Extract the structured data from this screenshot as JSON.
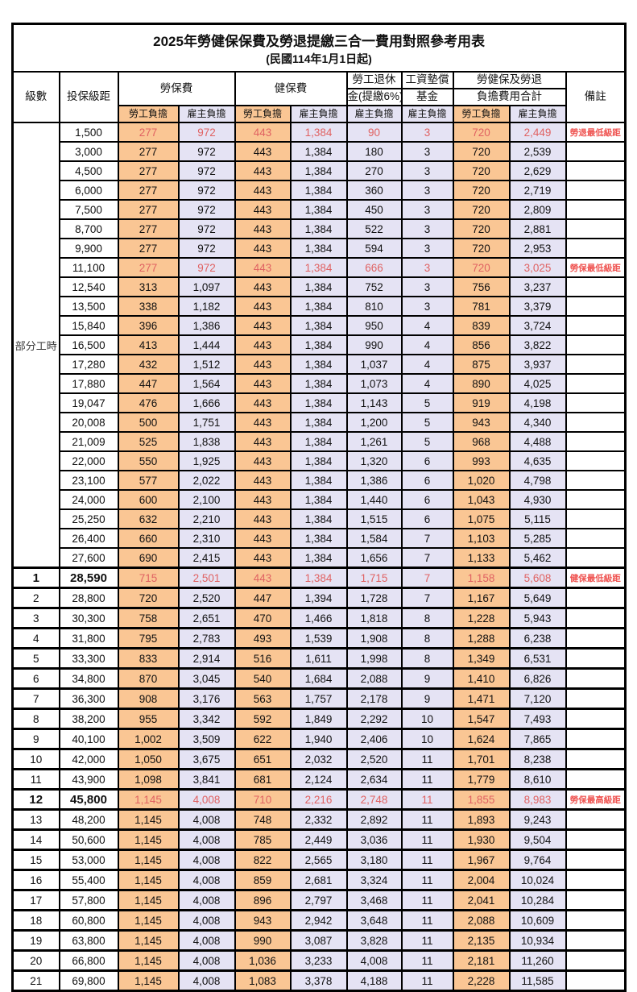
{
  "page": {
    "title": "2025年勞健保保費及勞退提繳三合一費用對照參考用表",
    "subtitle": "(民國114年1月1日起)"
  },
  "columns": {
    "level": "級數",
    "bracket": "投保級距",
    "labor_fee": "勞保費",
    "health_fee": "健保費",
    "pension_l1": "勞工退休",
    "pension_l2": "金(提繳6%)",
    "wage_fund_l1": "工資墊償",
    "wage_fund_l2": "基金",
    "total_l1": "勞健保及勞退",
    "total_l2": "負擔費用合計",
    "remark": "備註",
    "employee_share": "勞工負擔",
    "employer_share": "雇主負擔"
  },
  "group_label": "部分工時",
  "colors": {
    "employee_fill": "#FAC694",
    "employer_fill": "#E5E3F4",
    "highlight_number_text": "#E06262",
    "remark_text": "#EF5350",
    "border": "#000000"
  },
  "rows": [
    {
      "level": "",
      "bracket": "1,500",
      "cells": [
        "277",
        "972",
        "443",
        "1,384",
        "90",
        "3",
        "720",
        "2,449"
      ],
      "remark": "勞退最低級距",
      "red": true,
      "bold": false
    },
    {
      "level": "",
      "bracket": "3,000",
      "cells": [
        "277",
        "972",
        "443",
        "1,384",
        "180",
        "3",
        "720",
        "2,539"
      ],
      "remark": "",
      "red": false,
      "bold": false
    },
    {
      "level": "",
      "bracket": "4,500",
      "cells": [
        "277",
        "972",
        "443",
        "1,384",
        "270",
        "3",
        "720",
        "2,629"
      ],
      "remark": "",
      "red": false,
      "bold": false
    },
    {
      "level": "",
      "bracket": "6,000",
      "cells": [
        "277",
        "972",
        "443",
        "1,384",
        "360",
        "3",
        "720",
        "2,719"
      ],
      "remark": "",
      "red": false,
      "bold": false
    },
    {
      "level": "",
      "bracket": "7,500",
      "cells": [
        "277",
        "972",
        "443",
        "1,384",
        "450",
        "3",
        "720",
        "2,809"
      ],
      "remark": "",
      "red": false,
      "bold": false
    },
    {
      "level": "",
      "bracket": "8,700",
      "cells": [
        "277",
        "972",
        "443",
        "1,384",
        "522",
        "3",
        "720",
        "2,881"
      ],
      "remark": "",
      "red": false,
      "bold": false
    },
    {
      "level": "",
      "bracket": "9,900",
      "cells": [
        "277",
        "972",
        "443",
        "1,384",
        "594",
        "3",
        "720",
        "2,953"
      ],
      "remark": "",
      "red": false,
      "bold": false
    },
    {
      "level": "",
      "bracket": "11,100",
      "cells": [
        "277",
        "972",
        "443",
        "1,384",
        "666",
        "3",
        "720",
        "3,025"
      ],
      "remark": "勞保最低級距",
      "red": true,
      "bold": false
    },
    {
      "level": "",
      "bracket": "12,540",
      "cells": [
        "313",
        "1,097",
        "443",
        "1,384",
        "752",
        "3",
        "756",
        "3,237"
      ],
      "remark": "",
      "red": false,
      "bold": false
    },
    {
      "level": "",
      "bracket": "13,500",
      "cells": [
        "338",
        "1,182",
        "443",
        "1,384",
        "810",
        "3",
        "781",
        "3,379"
      ],
      "remark": "",
      "red": false,
      "bold": false
    },
    {
      "level": "",
      "bracket": "15,840",
      "cells": [
        "396",
        "1,386",
        "443",
        "1,384",
        "950",
        "4",
        "839",
        "3,724"
      ],
      "remark": "",
      "red": false,
      "bold": false
    },
    {
      "level": "",
      "bracket": "16,500",
      "cells": [
        "413",
        "1,444",
        "443",
        "1,384",
        "990",
        "4",
        "856",
        "3,822"
      ],
      "remark": "",
      "red": false,
      "bold": false
    },
    {
      "level": "",
      "bracket": "17,280",
      "cells": [
        "432",
        "1,512",
        "443",
        "1,384",
        "1,037",
        "4",
        "875",
        "3,937"
      ],
      "remark": "",
      "red": false,
      "bold": false
    },
    {
      "level": "",
      "bracket": "17,880",
      "cells": [
        "447",
        "1,564",
        "443",
        "1,384",
        "1,073",
        "4",
        "890",
        "4,025"
      ],
      "remark": "",
      "red": false,
      "bold": false
    },
    {
      "level": "",
      "bracket": "19,047",
      "cells": [
        "476",
        "1,666",
        "443",
        "1,384",
        "1,143",
        "5",
        "919",
        "4,198"
      ],
      "remark": "",
      "red": false,
      "bold": false
    },
    {
      "level": "",
      "bracket": "20,008",
      "cells": [
        "500",
        "1,751",
        "443",
        "1,384",
        "1,200",
        "5",
        "943",
        "4,340"
      ],
      "remark": "",
      "red": false,
      "bold": false
    },
    {
      "level": "",
      "bracket": "21,009",
      "cells": [
        "525",
        "1,838",
        "443",
        "1,384",
        "1,261",
        "5",
        "968",
        "4,488"
      ],
      "remark": "",
      "red": false,
      "bold": false
    },
    {
      "level": "",
      "bracket": "22,000",
      "cells": [
        "550",
        "1,925",
        "443",
        "1,384",
        "1,320",
        "6",
        "993",
        "4,635"
      ],
      "remark": "",
      "red": false,
      "bold": false
    },
    {
      "level": "",
      "bracket": "23,100",
      "cells": [
        "577",
        "2,022",
        "443",
        "1,384",
        "1,386",
        "6",
        "1,020",
        "4,798"
      ],
      "remark": "",
      "red": false,
      "bold": false
    },
    {
      "level": "",
      "bracket": "24,000",
      "cells": [
        "600",
        "2,100",
        "443",
        "1,384",
        "1,440",
        "6",
        "1,043",
        "4,930"
      ],
      "remark": "",
      "red": false,
      "bold": false
    },
    {
      "level": "",
      "bracket": "25,250",
      "cells": [
        "632",
        "2,210",
        "443",
        "1,384",
        "1,515",
        "6",
        "1,075",
        "5,115"
      ],
      "remark": "",
      "red": false,
      "bold": false
    },
    {
      "level": "",
      "bracket": "26,400",
      "cells": [
        "660",
        "2,310",
        "443",
        "1,384",
        "1,584",
        "7",
        "1,103",
        "5,285"
      ],
      "remark": "",
      "red": false,
      "bold": false
    },
    {
      "level": "",
      "bracket": "27,600",
      "cells": [
        "690",
        "2,415",
        "443",
        "1,384",
        "1,656",
        "7",
        "1,133",
        "5,462"
      ],
      "remark": "",
      "red": false,
      "bold": false
    },
    {
      "level": "1",
      "bracket": "28,590",
      "cells": [
        "715",
        "2,501",
        "443",
        "1,384",
        "1,715",
        "7",
        "1,158",
        "5,608"
      ],
      "remark": "健保最低級距",
      "red": true,
      "bold": true
    },
    {
      "level": "2",
      "bracket": "28,800",
      "cells": [
        "720",
        "2,520",
        "447",
        "1,394",
        "1,728",
        "7",
        "1,167",
        "5,649"
      ],
      "remark": "",
      "red": false,
      "bold": false
    },
    {
      "level": "3",
      "bracket": "30,300",
      "cells": [
        "758",
        "2,651",
        "470",
        "1,466",
        "1,818",
        "8",
        "1,228",
        "5,943"
      ],
      "remark": "",
      "red": false,
      "bold": false
    },
    {
      "level": "4",
      "bracket": "31,800",
      "cells": [
        "795",
        "2,783",
        "493",
        "1,539",
        "1,908",
        "8",
        "1,288",
        "6,238"
      ],
      "remark": "",
      "red": false,
      "bold": false
    },
    {
      "level": "5",
      "bracket": "33,300",
      "cells": [
        "833",
        "2,914",
        "516",
        "1,611",
        "1,998",
        "8",
        "1,349",
        "6,531"
      ],
      "remark": "",
      "red": false,
      "bold": false
    },
    {
      "level": "6",
      "bracket": "34,800",
      "cells": [
        "870",
        "3,045",
        "540",
        "1,684",
        "2,088",
        "9",
        "1,410",
        "6,826"
      ],
      "remark": "",
      "red": false,
      "bold": false
    },
    {
      "level": "7",
      "bracket": "36,300",
      "cells": [
        "908",
        "3,176",
        "563",
        "1,757",
        "2,178",
        "9",
        "1,471",
        "7,120"
      ],
      "remark": "",
      "red": false,
      "bold": false
    },
    {
      "level": "8",
      "bracket": "38,200",
      "cells": [
        "955",
        "3,342",
        "592",
        "1,849",
        "2,292",
        "10",
        "1,547",
        "7,493"
      ],
      "remark": "",
      "red": false,
      "bold": false
    },
    {
      "level": "9",
      "bracket": "40,100",
      "cells": [
        "1,002",
        "3,509",
        "622",
        "1,940",
        "2,406",
        "10",
        "1,624",
        "7,865"
      ],
      "remark": "",
      "red": false,
      "bold": false
    },
    {
      "level": "10",
      "bracket": "42,000",
      "cells": [
        "1,050",
        "3,675",
        "651",
        "2,032",
        "2,520",
        "11",
        "1,701",
        "8,238"
      ],
      "remark": "",
      "red": false,
      "bold": false
    },
    {
      "level": "11",
      "bracket": "43,900",
      "cells": [
        "1,098",
        "3,841",
        "681",
        "2,124",
        "2,634",
        "11",
        "1,779",
        "8,610"
      ],
      "remark": "",
      "red": false,
      "bold": false
    },
    {
      "level": "12",
      "bracket": "45,800",
      "cells": [
        "1,145",
        "4,008",
        "710",
        "2,216",
        "2,748",
        "11",
        "1,855",
        "8,983"
      ],
      "remark": "勞保最高級距",
      "red": true,
      "bold": true
    },
    {
      "level": "13",
      "bracket": "48,200",
      "cells": [
        "1,145",
        "4,008",
        "748",
        "2,332",
        "2,892",
        "11",
        "1,893",
        "9,243"
      ],
      "remark": "",
      "red": false,
      "bold": false
    },
    {
      "level": "14",
      "bracket": "50,600",
      "cells": [
        "1,145",
        "4,008",
        "785",
        "2,449",
        "3,036",
        "11",
        "1,930",
        "9,504"
      ],
      "remark": "",
      "red": false,
      "bold": false
    },
    {
      "level": "15",
      "bracket": "53,000",
      "cells": [
        "1,145",
        "4,008",
        "822",
        "2,565",
        "3,180",
        "11",
        "1,967",
        "9,764"
      ],
      "remark": "",
      "red": false,
      "bold": false
    },
    {
      "level": "16",
      "bracket": "55,400",
      "cells": [
        "1,145",
        "4,008",
        "859",
        "2,681",
        "3,324",
        "11",
        "2,004",
        "10,024"
      ],
      "remark": "",
      "red": false,
      "bold": false
    },
    {
      "level": "17",
      "bracket": "57,800",
      "cells": [
        "1,145",
        "4,008",
        "896",
        "2,797",
        "3,468",
        "11",
        "2,041",
        "10,284"
      ],
      "remark": "",
      "red": false,
      "bold": false
    },
    {
      "level": "18",
      "bracket": "60,800",
      "cells": [
        "1,145",
        "4,008",
        "943",
        "2,942",
        "3,648",
        "11",
        "2,088",
        "10,609"
      ],
      "remark": "",
      "red": false,
      "bold": false
    },
    {
      "level": "19",
      "bracket": "63,800",
      "cells": [
        "1,145",
        "4,008",
        "990",
        "3,087",
        "3,828",
        "11",
        "2,135",
        "10,934"
      ],
      "remark": "",
      "red": false,
      "bold": false
    },
    {
      "level": "20",
      "bracket": "66,800",
      "cells": [
        "1,145",
        "4,008",
        "1,036",
        "3,233",
        "4,008",
        "11",
        "2,181",
        "11,260"
      ],
      "remark": "",
      "red": false,
      "bold": false
    },
    {
      "level": "21",
      "bracket": "69,800",
      "cells": [
        "1,145",
        "4,008",
        "1,083",
        "3,378",
        "4,188",
        "11",
        "2,228",
        "11,585"
      ],
      "remark": "",
      "red": false,
      "bold": false
    }
  ]
}
